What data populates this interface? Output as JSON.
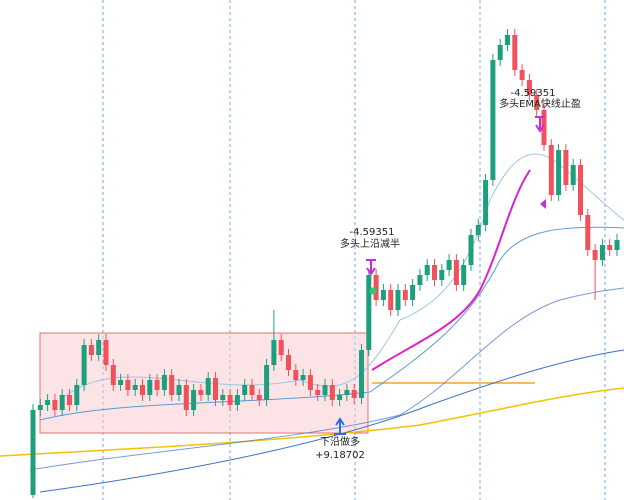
{
  "chart_data": {
    "type": "candlestick",
    "ylim": [
      0,
      500
    ],
    "up_color": "#1f9e7e",
    "down_color": "#f0515a",
    "open": [
      5,
      90,
      95,
      100,
      90,
      105,
      95,
      115,
      155,
      145,
      160,
      135,
      115,
      120,
      110,
      115,
      105,
      120,
      110,
      125,
      105,
      115,
      90,
      110,
      105,
      122,
      100,
      105,
      95,
      105,
      115,
      105,
      100,
      135,
      160,
      145,
      130,
      120,
      125,
      110,
      105,
      115,
      100,
      105,
      110,
      102,
      150,
      225,
      200,
      210,
      190,
      210,
      200,
      215,
      225,
      235,
      220,
      230,
      240,
      215,
      235,
      265,
      275,
      320,
      440,
      455,
      465,
      430,
      420,
      405,
      390,
      355,
      305,
      350,
      315,
      335,
      285,
      250,
      240,
      255,
      250
    ],
    "high": [
      96,
      101,
      106,
      106,
      111,
      111,
      121,
      161,
      161,
      166,
      166,
      141,
      126,
      126,
      121,
      121,
      126,
      126,
      131,
      131,
      121,
      121,
      116,
      116,
      128,
      128,
      111,
      111,
      111,
      121,
      121,
      111,
      141,
      190,
      166,
      151,
      136,
      131,
      131,
      116,
      121,
      121,
      111,
      116,
      116,
      156,
      231,
      231,
      216,
      216,
      216,
      216,
      221,
      231,
      241,
      241,
      236,
      246,
      246,
      241,
      271,
      281,
      326,
      446,
      461,
      471,
      471,
      436,
      426,
      411,
      396,
      361,
      356,
      356,
      341,
      341,
      291,
      256,
      261,
      261,
      266
    ],
    "low": [
      2,
      84,
      89,
      84,
      84,
      89,
      89,
      109,
      139,
      139,
      129,
      109,
      109,
      104,
      104,
      99,
      99,
      104,
      104,
      99,
      99,
      84,
      84,
      99,
      99,
      94,
      94,
      89,
      89,
      99,
      99,
      94,
      94,
      129,
      139,
      124,
      114,
      114,
      104,
      99,
      99,
      94,
      94,
      99,
      96,
      96,
      144,
      194,
      194,
      184,
      184,
      194,
      194,
      209,
      219,
      214,
      214,
      224,
      209,
      209,
      229,
      259,
      269,
      314,
      434,
      449,
      424,
      414,
      399,
      384,
      349,
      299,
      299,
      309,
      309,
      279,
      244,
      200,
      234,
      244,
      244
    ],
    "close": [
      90,
      95,
      100,
      90,
      105,
      95,
      115,
      155,
      145,
      160,
      135,
      115,
      120,
      110,
      115,
      105,
      120,
      110,
      125,
      105,
      115,
      90,
      110,
      105,
      122,
      100,
      105,
      95,
      105,
      115,
      105,
      100,
      135,
      160,
      145,
      130,
      120,
      125,
      110,
      105,
      115,
      100,
      105,
      110,
      102,
      150,
      225,
      200,
      210,
      190,
      210,
      200,
      215,
      225,
      235,
      220,
      230,
      240,
      215,
      235,
      265,
      275,
      320,
      440,
      455,
      465,
      430,
      420,
      405,
      390,
      355,
      305,
      350,
      315,
      335,
      285,
      250,
      240,
      255,
      250,
      260
    ],
    "annotations": [
      {
        "value": "-4.59351",
        "text": "多头上沿减半"
      },
      {
        "value": "-4.59351",
        "text": "多头EMA快线止盈"
      },
      {
        "text": "下沿做多",
        "value": "+9.18702"
      }
    ]
  }
}
